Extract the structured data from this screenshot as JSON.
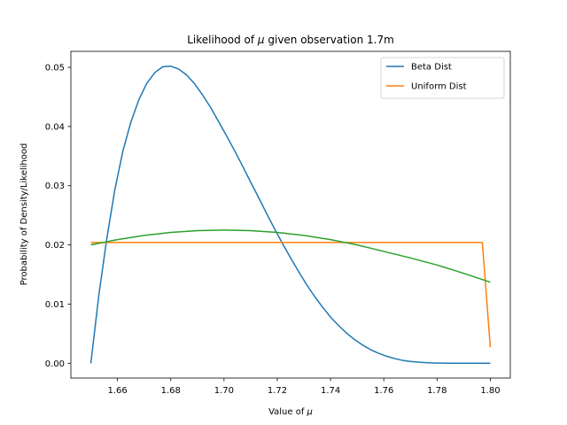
{
  "chart_data": {
    "type": "line",
    "title_prefix": "Likelihood of ",
    "title_symbol": "μ",
    "title_suffix": " given observation 1.7m",
    "xlabel_prefix": "Value of ",
    "xlabel_symbol": "μ",
    "ylabel": "Probability of Density/Likelihood",
    "xlim": [
      1.6425,
      1.8075
    ],
    "ylim": [
      -0.0025,
      0.0527
    ],
    "xticks": [
      1.66,
      1.68,
      1.7,
      1.72,
      1.74,
      1.76,
      1.78,
      1.8
    ],
    "xtick_labels": [
      "1.66",
      "1.68",
      "1.70",
      "1.72",
      "1.74",
      "1.76",
      "1.78",
      "1.80"
    ],
    "yticks": [
      0.0,
      0.01,
      0.02,
      0.03,
      0.04,
      0.05
    ],
    "ytick_labels": [
      "0.00",
      "0.01",
      "0.02",
      "0.03",
      "0.04",
      "0.05"
    ],
    "grid": false,
    "legend_position": "upper right",
    "series": [
      {
        "name": "Beta Dist",
        "color": "#1f77b4",
        "x": [
          1.65,
          1.653,
          1.656,
          1.659,
          1.662,
          1.665,
          1.668,
          1.671,
          1.674,
          1.677,
          1.68,
          1.683,
          1.686,
          1.689,
          1.692,
          1.695,
          1.698,
          1.701,
          1.704,
          1.707,
          1.71,
          1.713,
          1.716,
          1.719,
          1.722,
          1.725,
          1.728,
          1.731,
          1.734,
          1.737,
          1.74,
          1.743,
          1.746,
          1.749,
          1.752,
          1.755,
          1.758,
          1.761,
          1.764,
          1.767,
          1.77,
          1.773,
          1.776,
          1.779,
          1.782,
          1.785,
          1.788,
          1.791,
          1.794,
          1.797,
          1.8
        ],
        "y": [
          0.0,
          0.0115,
          0.0211,
          0.0293,
          0.0358,
          0.0407,
          0.0445,
          0.0473,
          0.0491,
          0.0501,
          0.0502,
          0.0497,
          0.0487,
          0.0472,
          0.0453,
          0.0432,
          0.0408,
          0.0384,
          0.0359,
          0.0333,
          0.0306,
          0.028,
          0.0253,
          0.0227,
          0.0202,
          0.0178,
          0.0155,
          0.0133,
          0.0113,
          0.0095,
          0.0078,
          0.0064,
          0.0051,
          0.004,
          0.0031,
          0.0023,
          0.0017,
          0.0012,
          0.0008,
          0.0005,
          0.0003,
          0.0002,
          0.0001,
          5e-05,
          2e-05,
          1e-05,
          0.0,
          0.0,
          0.0,
          0.0,
          0.0
        ]
      },
      {
        "name": "Uniform Dist",
        "color": "#ff7f0e",
        "x": [
          1.65,
          1.797,
          1.8
        ],
        "y": [
          0.0204,
          0.0204,
          0.0027
        ]
      },
      {
        "name": "",
        "color": "#2ca02c",
        "x": [
          1.65,
          1.66,
          1.67,
          1.68,
          1.69,
          1.7,
          1.71,
          1.72,
          1.73,
          1.74,
          1.75,
          1.76,
          1.77,
          1.78,
          1.79,
          1.8
        ],
        "y": [
          0.02,
          0.0209,
          0.0216,
          0.0221,
          0.0224,
          0.0225,
          0.0224,
          0.0221,
          0.0216,
          0.0209,
          0.02,
          0.0189,
          0.0178,
          0.0166,
          0.0152,
          0.0137
        ]
      }
    ]
  }
}
